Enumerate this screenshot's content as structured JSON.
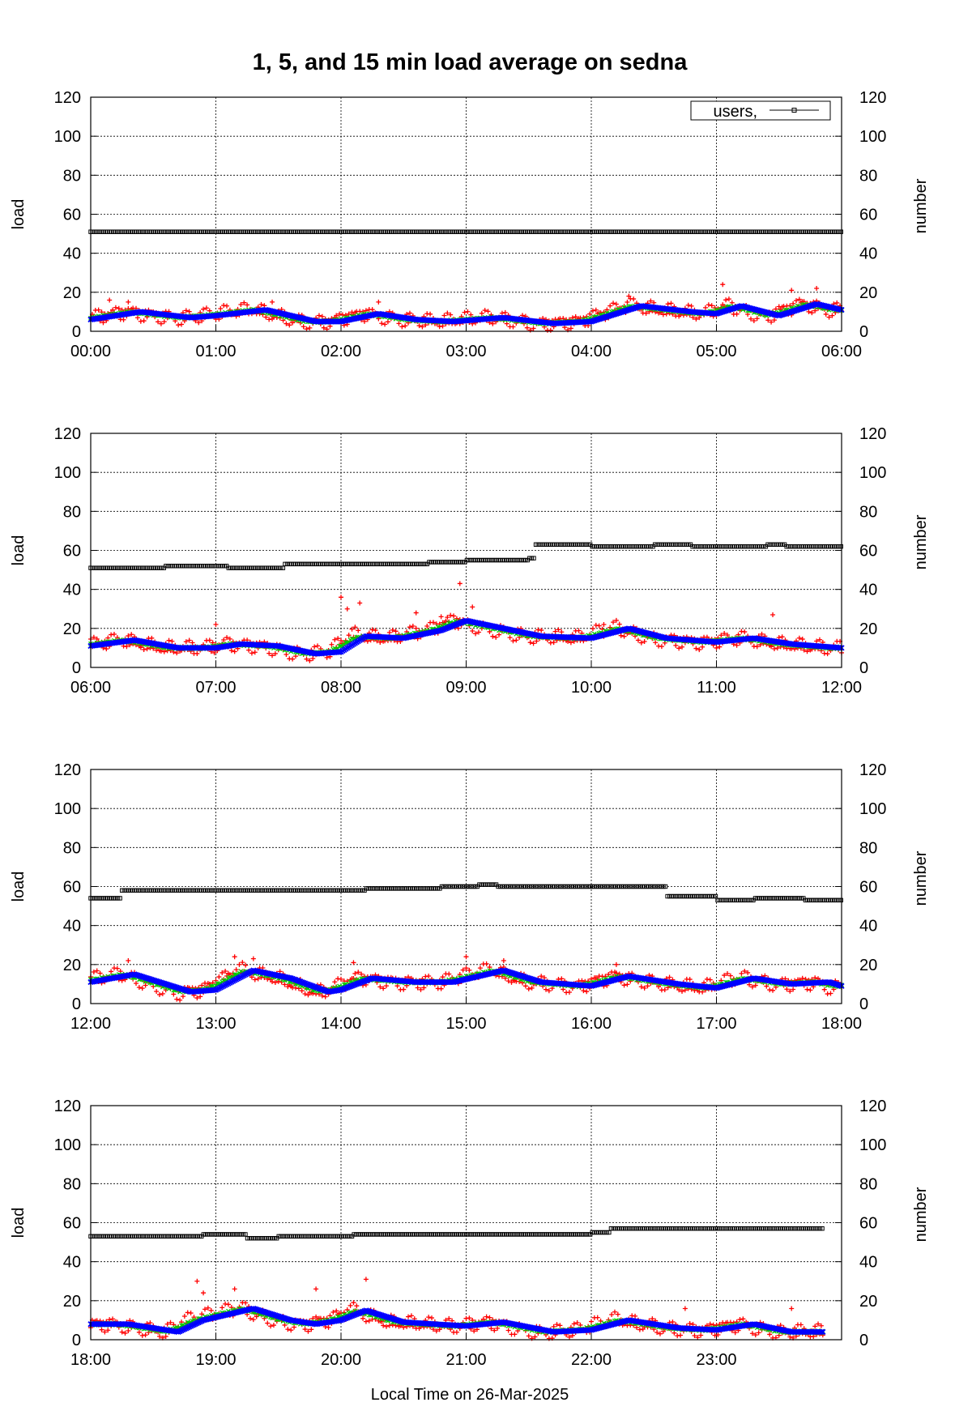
{
  "chart_data": {
    "type": "scatter",
    "title": "1, 5, and 15 min load average on sedna",
    "xlabel": "Local Time on 26-Mar-2025",
    "y1label": "load",
    "y2label": "number",
    "ylim": [
      0,
      120
    ],
    "y_ticks": [
      "0",
      "20",
      "40",
      "60",
      "80",
      "100",
      "120"
    ],
    "legend": {
      "label": "users,",
      "placement": "top-right"
    },
    "grid": true,
    "colors": {
      "load_1min": "#ff0000",
      "load_5min": "#00cc00",
      "load_15min": "#0000ff",
      "users": "#000000"
    },
    "panels": [
      {
        "x_ticks": [
          "00:00",
          "01:00",
          "02:00",
          "03:00",
          "04:00",
          "05:00",
          "06:00"
        ],
        "x_range_hours": [
          0,
          6
        ],
        "users": [
          [
            0,
            51
          ],
          [
            6,
            51
          ]
        ],
        "load15": [
          [
            0,
            6
          ],
          [
            0.4,
            10
          ],
          [
            0.8,
            7
          ],
          [
            1.0,
            8
          ],
          [
            1.4,
            11
          ],
          [
            1.8,
            5
          ],
          [
            2.0,
            5
          ],
          [
            2.3,
            9
          ],
          [
            2.6,
            6
          ],
          [
            2.9,
            5
          ],
          [
            3.3,
            7
          ],
          [
            3.7,
            4
          ],
          [
            4.0,
            5
          ],
          [
            4.4,
            13
          ],
          [
            4.8,
            10
          ],
          [
            5.0,
            9
          ],
          [
            5.2,
            13
          ],
          [
            5.5,
            8
          ],
          [
            5.8,
            14
          ],
          [
            6.0,
            11
          ]
        ],
        "load1_outliers": [
          [
            0.15,
            16
          ],
          [
            0.3,
            15
          ],
          [
            1.45,
            15
          ],
          [
            2.3,
            15
          ],
          [
            4.3,
            18
          ],
          [
            5.05,
            24
          ],
          [
            5.6,
            21
          ],
          [
            5.8,
            22
          ]
        ]
      },
      {
        "x_ticks": [
          "06:00",
          "07:00",
          "08:00",
          "09:00",
          "10:00",
          "11:00",
          "12:00"
        ],
        "x_range_hours": [
          6,
          12
        ],
        "users": [
          [
            6,
            51
          ],
          [
            6.6,
            52
          ],
          [
            7.1,
            51
          ],
          [
            7.55,
            53
          ],
          [
            8.3,
            53
          ],
          [
            8.7,
            54
          ],
          [
            9.0,
            55
          ],
          [
            9.5,
            56
          ],
          [
            9.55,
            63
          ],
          [
            10.0,
            62
          ],
          [
            10.5,
            63
          ],
          [
            10.8,
            62
          ],
          [
            11.4,
            63
          ],
          [
            11.55,
            62
          ],
          [
            12,
            62
          ],
          [
            12,
            58
          ]
        ],
        "load15": [
          [
            6,
            11
          ],
          [
            6.35,
            14
          ],
          [
            6.7,
            10
          ],
          [
            7.0,
            10
          ],
          [
            7.2,
            12
          ],
          [
            7.5,
            11
          ],
          [
            7.8,
            7
          ],
          [
            8.0,
            8
          ],
          [
            8.2,
            16
          ],
          [
            8.5,
            15
          ],
          [
            8.8,
            19
          ],
          [
            9.0,
            24
          ],
          [
            9.3,
            20
          ],
          [
            9.6,
            16
          ],
          [
            10.0,
            15
          ],
          [
            10.3,
            20
          ],
          [
            10.6,
            15
          ],
          [
            11.0,
            13
          ],
          [
            11.3,
            15
          ],
          [
            11.6,
            12
          ],
          [
            12,
            10
          ]
        ],
        "load1_outliers": [
          [
            7.0,
            22
          ],
          [
            8.0,
            36
          ],
          [
            8.05,
            30
          ],
          [
            8.15,
            33
          ],
          [
            8.6,
            28
          ],
          [
            8.8,
            26
          ],
          [
            8.95,
            43
          ],
          [
            9.05,
            31
          ],
          [
            10.1,
            22
          ],
          [
            11.45,
            27
          ]
        ]
      },
      {
        "x_ticks": [
          "12:00",
          "13:00",
          "14:00",
          "15:00",
          "16:00",
          "17:00",
          "18:00"
        ],
        "x_range_hours": [
          12,
          18
        ],
        "users": [
          [
            12,
            54
          ],
          [
            12.25,
            58
          ],
          [
            14.2,
            59
          ],
          [
            14.8,
            60
          ],
          [
            15.1,
            61
          ],
          [
            15.25,
            60
          ],
          [
            16.6,
            55
          ],
          [
            17.0,
            53
          ],
          [
            17.3,
            54
          ],
          [
            17.7,
            53
          ],
          [
            18,
            53
          ]
        ],
        "load15": [
          [
            12,
            11
          ],
          [
            12.35,
            15
          ],
          [
            12.8,
            6
          ],
          [
            13.0,
            7
          ],
          [
            13.3,
            17
          ],
          [
            13.6,
            13
          ],
          [
            13.9,
            6
          ],
          [
            14.0,
            7
          ],
          [
            14.25,
            13
          ],
          [
            14.6,
            11
          ],
          [
            14.9,
            11
          ],
          [
            15.3,
            17
          ],
          [
            15.6,
            11
          ],
          [
            16.0,
            9
          ],
          [
            16.3,
            14
          ],
          [
            16.7,
            10
          ],
          [
            17.0,
            8
          ],
          [
            17.3,
            13
          ],
          [
            17.6,
            10
          ],
          [
            17.9,
            11
          ],
          [
            18,
            9
          ]
        ],
        "load1_outliers": [
          [
            12.3,
            22
          ],
          [
            13.15,
            24
          ],
          [
            13.3,
            23
          ],
          [
            14.1,
            21
          ],
          [
            15.0,
            24
          ],
          [
            15.3,
            22
          ],
          [
            16.2,
            20
          ]
        ]
      },
      {
        "x_ticks": [
          "18:00",
          "19:00",
          "20:00",
          "21:00",
          "22:00",
          "23:00"
        ],
        "x_range_hours": [
          18,
          24
        ],
        "users": [
          [
            18,
            53
          ],
          [
            18.9,
            54
          ],
          [
            19.25,
            52
          ],
          [
            19.5,
            53
          ],
          [
            20.1,
            54
          ],
          [
            22.0,
            55
          ],
          [
            22.15,
            57
          ],
          [
            23.85,
            57
          ]
        ],
        "load15": [
          [
            18,
            8
          ],
          [
            18.3,
            8
          ],
          [
            18.7,
            4
          ],
          [
            18.9,
            10
          ],
          [
            19.3,
            16
          ],
          [
            19.6,
            10
          ],
          [
            19.8,
            8
          ],
          [
            20.0,
            10
          ],
          [
            20.2,
            15
          ],
          [
            20.5,
            9
          ],
          [
            21.0,
            7
          ],
          [
            21.3,
            9
          ],
          [
            21.7,
            4
          ],
          [
            22.0,
            5
          ],
          [
            22.3,
            10
          ],
          [
            22.7,
            6
          ],
          [
            23.0,
            5
          ],
          [
            23.3,
            8
          ],
          [
            23.6,
            4
          ],
          [
            23.85,
            4
          ]
        ],
        "load1_outliers": [
          [
            18.85,
            30
          ],
          [
            18.9,
            24
          ],
          [
            19.15,
            26
          ],
          [
            19.8,
            26
          ],
          [
            20.2,
            31
          ],
          [
            22.75,
            16
          ],
          [
            23.6,
            16
          ]
        ]
      }
    ]
  }
}
